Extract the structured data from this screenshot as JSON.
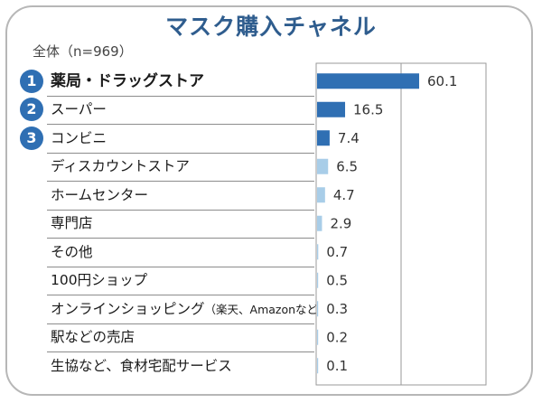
{
  "title": "マスク購入チャネル",
  "subtitle": "全体（n=969）",
  "colors": {
    "top": "#2f6fb3",
    "rest": "#a8cde8",
    "title": "#2f5d8e"
  },
  "chart_data": {
    "type": "bar",
    "orientation": "horizontal",
    "title": "マスク購入チャネル",
    "subtitle": "全体（n=969）",
    "categories": [
      "薬局・ドラッグストア",
      "スーパー",
      "コンビニ",
      "ディスカウントストア",
      "ホームセンター",
      "専門店",
      "その他",
      "100円ショップ",
      "オンラインショッピング（楽天、Amazonなど）",
      "駅などの売店",
      "生協など、食材宅配サービス"
    ],
    "values": [
      60.1,
      16.5,
      7.4,
      6.5,
      4.7,
      2.9,
      0.7,
      0.5,
      0.3,
      0.2,
      0.1
    ],
    "value_labels": [
      "60.1",
      "16.5",
      "7.4",
      "6.5",
      "4.7",
      "2.9",
      "0.7",
      "0.5",
      "0.3",
      "0.2",
      "0.1"
    ],
    "ranks": [
      "1",
      "2",
      "3"
    ],
    "xlim": [
      0,
      100
    ],
    "grid": true
  }
}
